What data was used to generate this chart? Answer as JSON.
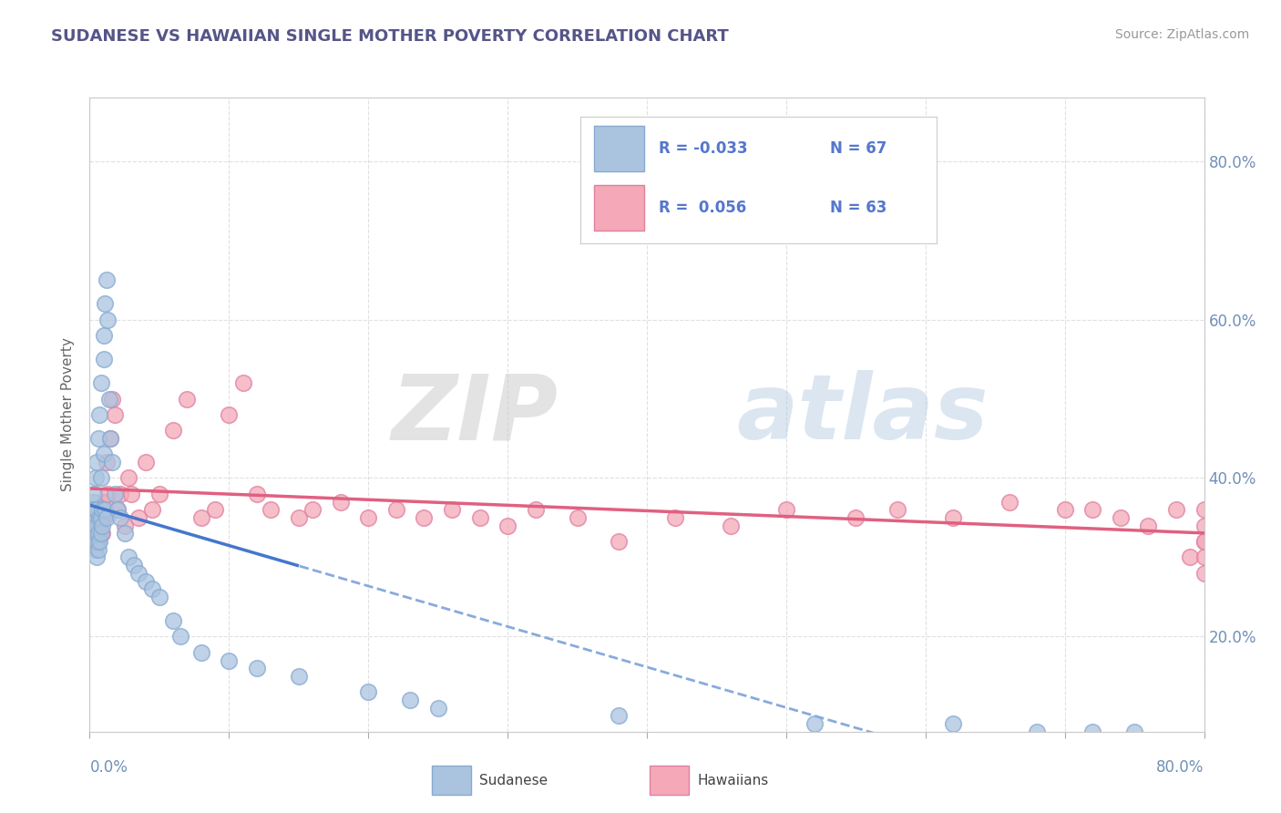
{
  "title": "SUDANESE VS HAWAIIAN SINGLE MOTHER POVERTY CORRELATION CHART",
  "source": "Source: ZipAtlas.com",
  "ylabel": "Single Mother Poverty",
  "legend_r": [
    -0.033,
    0.056
  ],
  "legend_n": [
    67,
    63
  ],
  "sudanese_color": "#aac4e0",
  "sudanese_edge": "#88aad0",
  "hawaiian_color": "#f4a8b8",
  "hawaiian_edge": "#e080a0",
  "sudanese_line_solid": "#4477cc",
  "sudanese_line_dashed": "#88aadd",
  "hawaiian_line_color": "#e06080",
  "background_color": "#ffffff",
  "grid_color": "#dddddd",
  "title_color": "#555588",
  "axis_label_color": "#7090b8",
  "legend_text_color": "#5577cc",
  "xlim": [
    0.0,
    0.8
  ],
  "ylim": [
    0.08,
    0.88
  ],
  "y_ticks": [
    0.2,
    0.4,
    0.6,
    0.8
  ],
  "sudanese_x": [
    0.002,
    0.002,
    0.003,
    0.003,
    0.003,
    0.003,
    0.003,
    0.004,
    0.004,
    0.004,
    0.004,
    0.004,
    0.004,
    0.005,
    0.005,
    0.005,
    0.005,
    0.005,
    0.005,
    0.006,
    0.006,
    0.006,
    0.007,
    0.007,
    0.007,
    0.008,
    0.008,
    0.008,
    0.008,
    0.009,
    0.009,
    0.01,
    0.01,
    0.01,
    0.011,
    0.011,
    0.012,
    0.012,
    0.013,
    0.014,
    0.015,
    0.016,
    0.018,
    0.02,
    0.022,
    0.025,
    0.028,
    0.032,
    0.035,
    0.04,
    0.045,
    0.05,
    0.06,
    0.065,
    0.08,
    0.1,
    0.12,
    0.15,
    0.2,
    0.23,
    0.25,
    0.38,
    0.52,
    0.62,
    0.68,
    0.72,
    0.75
  ],
  "sudanese_y": [
    0.33,
    0.35,
    0.32,
    0.34,
    0.36,
    0.37,
    0.38,
    0.31,
    0.33,
    0.34,
    0.35,
    0.36,
    0.4,
    0.3,
    0.32,
    0.33,
    0.34,
    0.36,
    0.42,
    0.31,
    0.33,
    0.45,
    0.32,
    0.35,
    0.48,
    0.33,
    0.35,
    0.4,
    0.52,
    0.34,
    0.36,
    0.43,
    0.55,
    0.58,
    0.36,
    0.62,
    0.35,
    0.65,
    0.6,
    0.5,
    0.45,
    0.42,
    0.38,
    0.36,
    0.35,
    0.33,
    0.3,
    0.29,
    0.28,
    0.27,
    0.26,
    0.25,
    0.22,
    0.2,
    0.18,
    0.17,
    0.16,
    0.15,
    0.13,
    0.12,
    0.11,
    0.1,
    0.09,
    0.09,
    0.08,
    0.08,
    0.08
  ],
  "hawaiian_x": [
    0.002,
    0.003,
    0.004,
    0.005,
    0.006,
    0.007,
    0.008,
    0.009,
    0.01,
    0.011,
    0.012,
    0.013,
    0.015,
    0.016,
    0.018,
    0.02,
    0.022,
    0.025,
    0.028,
    0.03,
    0.035,
    0.04,
    0.045,
    0.05,
    0.06,
    0.07,
    0.08,
    0.09,
    0.1,
    0.11,
    0.12,
    0.13,
    0.15,
    0.16,
    0.18,
    0.2,
    0.22,
    0.24,
    0.26,
    0.28,
    0.3,
    0.32,
    0.35,
    0.38,
    0.42,
    0.46,
    0.5,
    0.55,
    0.58,
    0.62,
    0.66,
    0.7,
    0.72,
    0.74,
    0.76,
    0.78,
    0.79,
    0.8,
    0.8,
    0.8,
    0.8,
    0.8,
    0.8
  ],
  "hawaiian_y": [
    0.34,
    0.36,
    0.33,
    0.35,
    0.32,
    0.34,
    0.36,
    0.33,
    0.35,
    0.37,
    0.42,
    0.38,
    0.45,
    0.5,
    0.48,
    0.36,
    0.38,
    0.34,
    0.4,
    0.38,
    0.35,
    0.42,
    0.36,
    0.38,
    0.46,
    0.5,
    0.35,
    0.36,
    0.48,
    0.52,
    0.38,
    0.36,
    0.35,
    0.36,
    0.37,
    0.35,
    0.36,
    0.35,
    0.36,
    0.35,
    0.34,
    0.36,
    0.35,
    0.32,
    0.35,
    0.34,
    0.36,
    0.35,
    0.36,
    0.35,
    0.37,
    0.36,
    0.36,
    0.35,
    0.34,
    0.36,
    0.3,
    0.32,
    0.36,
    0.34,
    0.28,
    0.3,
    0.32
  ]
}
